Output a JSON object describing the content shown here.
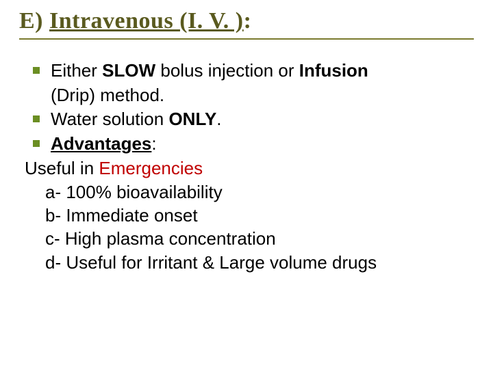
{
  "colors": {
    "title": "#5a5a1f",
    "title_border": "#7a7a2e",
    "bullet": "#6b8e23",
    "emergencies": "#c00000",
    "text": "#000000",
    "background": "#ffffff"
  },
  "typography": {
    "title_fontsize": 34,
    "body_fontsize": 26,
    "title_family": "Times New Roman",
    "body_family": "Arial"
  },
  "title": {
    "prefix": "E) ",
    "main": "Intravenous (I. V. )",
    "suffix": ":"
  },
  "bullets": [
    {
      "segments": [
        {
          "text": " Either ",
          "bold": false
        },
        {
          "text": "SLOW",
          "bold": true
        },
        {
          "text": " bolus injection or ",
          "bold": false
        },
        {
          "text": "Infusion",
          "bold": true
        }
      ],
      "continuation": "(Drip) method."
    },
    {
      "segments": [
        {
          "text": " Water solution ",
          "bold": false
        },
        {
          "text": "ONLY",
          "bold": true
        },
        {
          "text": ".",
          "bold": false
        }
      ]
    },
    {
      "segments": [
        {
          "text": " ",
          "bold": false
        },
        {
          "text": "Advantages",
          "bold": true,
          "underline": true
        },
        {
          "text": ":",
          "bold": false
        }
      ]
    }
  ],
  "useful_line": {
    "prefix": "Useful in ",
    "highlight": "Emergencies"
  },
  "sub_items": [
    "a- 100% bioavailability",
    "b- Immediate onset",
    "c- High plasma concentration",
    "d- Useful for Irritant & Large volume drugs"
  ]
}
